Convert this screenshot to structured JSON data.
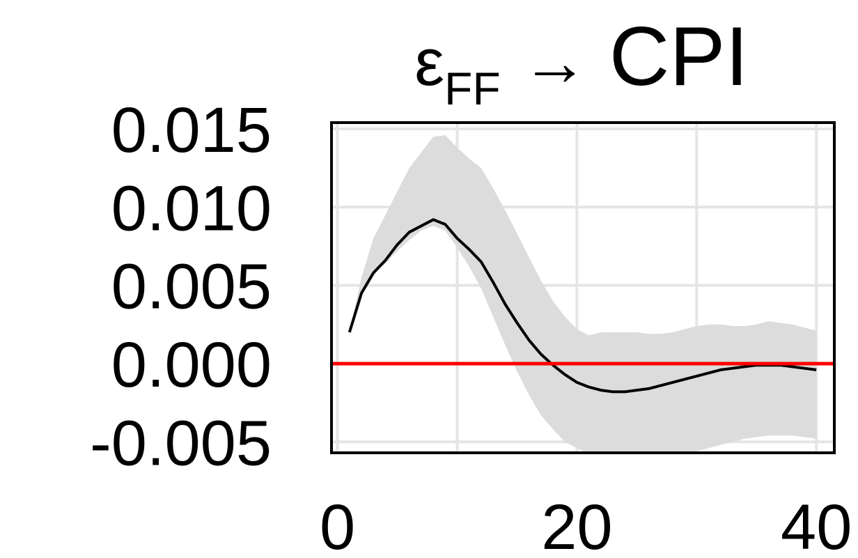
{
  "chart_data": {
    "type": "line",
    "title": {
      "shock": "ε",
      "shock_sub": "FF",
      "arrow": "→",
      "response": "CPI"
    },
    "xlabel": "",
    "ylabel": "",
    "xlim": [
      -0.5,
      41.5
    ],
    "ylim": [
      -0.0057,
      0.0154
    ],
    "x_ticks": [
      0,
      20,
      40
    ],
    "x_tick_labels": [
      "0",
      "20",
      "40"
    ],
    "y_ticks": [
      -0.005,
      0.0,
      0.005,
      0.01,
      0.015
    ],
    "y_tick_labels": [
      "-0.005",
      "0.000",
      "0.005",
      "0.010",
      "0.015"
    ],
    "grid": true,
    "reference_line": {
      "y": 0.0,
      "color": "#ff0000"
    },
    "colors": {
      "line": "#000000",
      "band": "#dcdcdc",
      "grid": "#e5e5e5",
      "reference": "#ff0000"
    },
    "series": [
      {
        "x": [
          1,
          2,
          3,
          4,
          5,
          6,
          7,
          8,
          9,
          10,
          11,
          12,
          13,
          14,
          15,
          16,
          17,
          18,
          19,
          20,
          21,
          22,
          23,
          24,
          25,
          26,
          27,
          28,
          29,
          30,
          31,
          32,
          33,
          34,
          35,
          36,
          37,
          38,
          39,
          40
        ],
        "values": [
          0.002,
          0.0045,
          0.0058,
          0.0066,
          0.0076,
          0.0084,
          0.0088,
          0.0092,
          0.0089,
          0.008,
          0.0073,
          0.0065,
          0.0052,
          0.0038,
          0.0026,
          0.0015,
          0.0006,
          -0.0001,
          -0.0007,
          -0.0012,
          -0.0015,
          -0.0017,
          -0.0018,
          -0.0018,
          -0.0017,
          -0.0016,
          -0.0014,
          -0.0012,
          -0.001,
          -0.0008,
          -0.0006,
          -0.0004,
          -0.0003,
          -0.0002,
          -0.0001,
          -0.0001,
          -0.0001,
          -0.0002,
          -0.0003,
          -0.0004
        ],
        "lower": [
          0.002,
          0.0045,
          0.0058,
          0.0064,
          0.0072,
          0.0079,
          0.0085,
          0.0088,
          0.0085,
          0.0074,
          0.0062,
          0.0048,
          0.003,
          0.0012,
          -0.0005,
          -0.002,
          -0.0033,
          -0.0042,
          -0.005,
          -0.0054,
          -0.0058,
          -0.0061,
          -0.0063,
          -0.0064,
          -0.0064,
          -0.0063,
          -0.0062,
          -0.006,
          -0.0058,
          -0.0056,
          -0.0054,
          -0.0052,
          -0.005,
          -0.0048,
          -0.0047,
          -0.0046,
          -0.0046,
          -0.0046,
          -0.0047,
          -0.0048
        ],
        "upper": [
          0.002,
          0.0055,
          0.008,
          0.0095,
          0.011,
          0.0125,
          0.0135,
          0.0145,
          0.0146,
          0.0138,
          0.0131,
          0.0125,
          0.0112,
          0.0098,
          0.0083,
          0.0068,
          0.0053,
          0.004,
          0.003,
          0.0022,
          0.0018,
          0.002,
          0.002,
          0.002,
          0.002,
          0.0019,
          0.0019,
          0.002,
          0.0022,
          0.0024,
          0.0025,
          0.0025,
          0.0024,
          0.0024,
          0.0025,
          0.0027,
          0.0026,
          0.0025,
          0.0023,
          0.0021
        ]
      }
    ]
  }
}
